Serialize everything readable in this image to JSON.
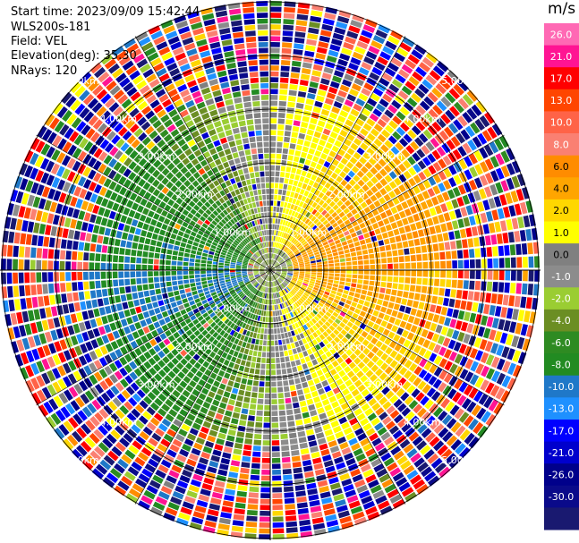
{
  "info": {
    "start_time": "Start time: 2023/09/09 15:42:44",
    "device": "WLS200s-181",
    "field": "Field: VEL",
    "elevation": "Elevation(deg): 35.30",
    "nrays": "NRays: 120"
  },
  "colorbar": {
    "unit": "m/s",
    "colors": [
      "#191970",
      "#0a0a8a",
      "#00008b",
      "#0000cd",
      "#0000ff",
      "#1e90ff",
      "#1f78c8",
      "#228b22",
      "#2e8b22",
      "#6b8e23",
      "#9acd32",
      "#8c8c8c",
      "#808080",
      "#ffff00",
      "#ffd700",
      "#ffa500",
      "#ff8c00",
      "#fa8072",
      "#ff6347",
      "#ff4500",
      "#ff0000",
      "#ff1493",
      "#ff69b4"
    ],
    "tick_labels": [
      "26.0",
      "21.0",
      "17.0",
      "13.0",
      "10.0",
      "8.0",
      "6.0",
      "4.0",
      "2.0",
      "1.0",
      "0.0",
      "-1.0",
      "-2.0",
      "-4.0",
      "-6.0",
      "-8.0",
      "-10.0",
      "-13.0",
      "-17.0",
      "-21.0",
      "-26.0",
      "-30.0"
    ]
  },
  "chart_data": {
    "type": "heatmap",
    "subtype": "polar PPI radar scan",
    "field": "VEL",
    "units": "m/s",
    "nrays": 120,
    "elevation_deg": 35.3,
    "range_rings_km": [
      1.0,
      2.0,
      3.0,
      4.0,
      5.0
    ],
    "range_labels": [
      "1.00km",
      "2.00km",
      "3.00km",
      "4.00km",
      "5.00km"
    ],
    "approx_pattern": {
      "east_sector_velocity_ms": [
        1.0,
        6.0
      ],
      "west_sector_velocity_ms": [
        -8.0,
        -2.0
      ],
      "near_range_north_velocity_ms": [
        1.0,
        4.0
      ],
      "far_range": "noisy mixed values across full scale"
    },
    "colorbar_levels": [
      -30.0,
      -26.0,
      -21.0,
      -17.0,
      -13.0,
      -10.0,
      -8.0,
      -6.0,
      -4.0,
      -2.0,
      -1.0,
      0.0,
      1.0,
      2.0,
      4.0,
      6.0,
      8.0,
      10.0,
      13.0,
      17.0,
      21.0,
      26.0
    ]
  }
}
